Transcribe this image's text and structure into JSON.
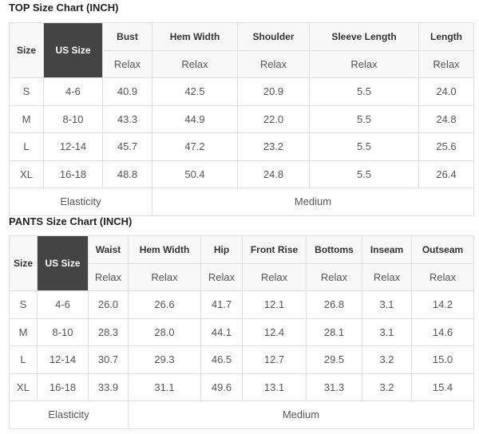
{
  "top": {
    "title": "TOP Size Chart (INCH)",
    "size_label": "Size",
    "us_size_label": "US Size",
    "columns": [
      "Bust",
      "Hem Width",
      "Shoulder",
      "Sleeve Length",
      "Length"
    ],
    "sub_label": "Relax",
    "rows": [
      {
        "size": "S",
        "us": "4-6",
        "values": [
          "40.9",
          "42.5",
          "20.9",
          "5.5",
          "24.0"
        ]
      },
      {
        "size": "M",
        "us": "8-10",
        "values": [
          "43.3",
          "44.9",
          "22.0",
          "5.5",
          "24.8"
        ]
      },
      {
        "size": "L",
        "us": "12-14",
        "values": [
          "45.7",
          "47.2",
          "23.2",
          "5.5",
          "25.6"
        ]
      },
      {
        "size": "XL",
        "us": "16-18",
        "values": [
          "48.8",
          "50.4",
          "24.8",
          "5.5",
          "26.4"
        ]
      }
    ],
    "elasticity_label": "Elasticity",
    "elasticity_value": "Medium"
  },
  "pants": {
    "title": "PANTS Size Chart (INCH)",
    "size_label": "Size",
    "us_size_label": "US Size",
    "columns": [
      "Waist",
      "Hem Width",
      "Hip",
      "Front Rise",
      "Bottoms",
      "Inseam",
      "Outseam"
    ],
    "sub_label": "Relax",
    "rows": [
      {
        "size": "S",
        "us": "4-6",
        "values": [
          "26.0",
          "26.6",
          "41.7",
          "12.1",
          "26.8",
          "3.1",
          "14.2"
        ]
      },
      {
        "size": "M",
        "us": "8-10",
        "values": [
          "28.3",
          "28.0",
          "44.1",
          "12.4",
          "28.1",
          "3.1",
          "14.6"
        ]
      },
      {
        "size": "L",
        "us": "12-14",
        "values": [
          "30.7",
          "29.3",
          "46.5",
          "12.7",
          "29.5",
          "3.2",
          "15.0"
        ]
      },
      {
        "size": "XL",
        "us": "16-18",
        "values": [
          "33.9",
          "31.1",
          "49.6",
          "13.1",
          "31.3",
          "3.2",
          "15.4"
        ]
      }
    ],
    "elasticity_label": "Elasticity",
    "elasticity_value": "Medium"
  },
  "colors": {
    "us_size_bg": "#444444",
    "header_bg": "#f8f8f8",
    "border": "#dedede"
  }
}
